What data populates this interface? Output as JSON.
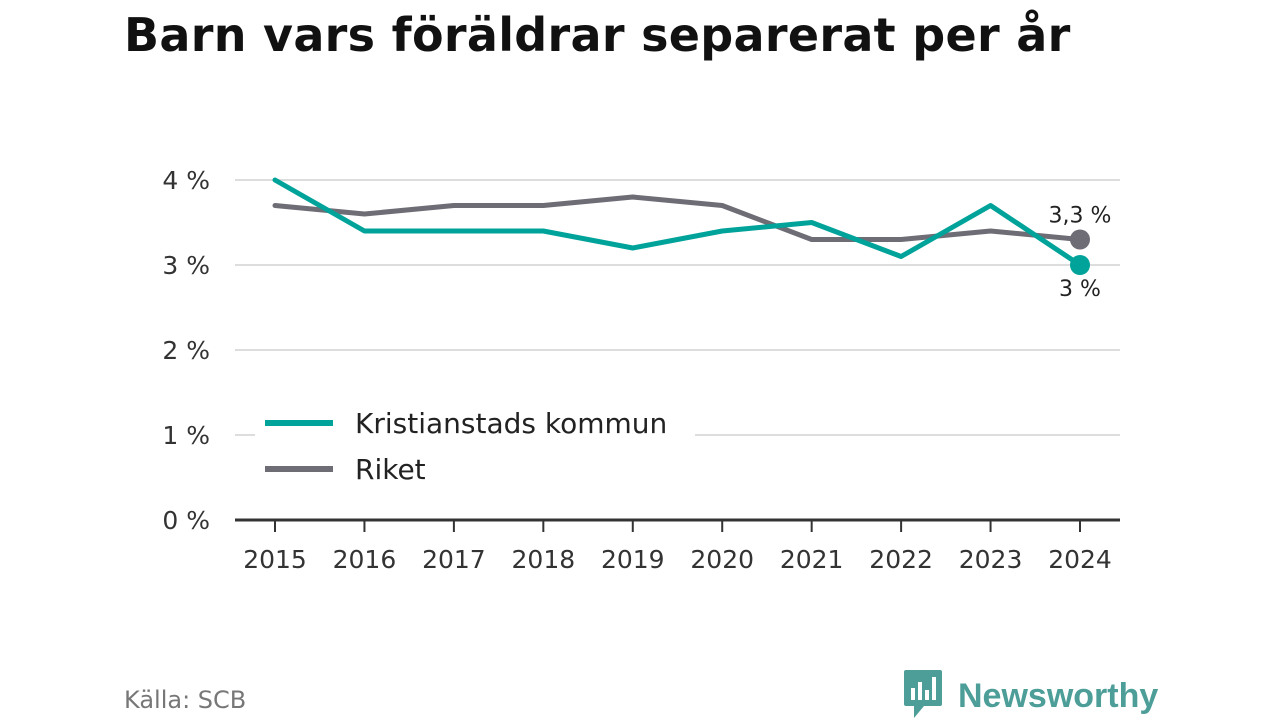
{
  "title": "Barn vars föräldrar separerat per år",
  "source": "Källa: SCB",
  "brand": {
    "name": "Newsworthy",
    "icon": "newsworthy-logo-icon",
    "color": "#4d9e98"
  },
  "chart_data": {
    "type": "line",
    "title": "Barn vars föräldrar separerat per år",
    "x": [
      2015,
      2016,
      2017,
      2018,
      2019,
      2020,
      2021,
      2022,
      2023,
      2024
    ],
    "x_tick_labels": [
      "2015",
      "2016",
      "2017",
      "2018",
      "2019",
      "2020",
      "2021",
      "2022",
      "2023",
      "2024"
    ],
    "y_ticks": [
      0,
      1,
      2,
      3,
      4
    ],
    "y_tick_labels": [
      "0 %",
      "1 %",
      "2 %",
      "3 %",
      "4 %"
    ],
    "ylim": [
      0,
      4
    ],
    "grid": "horizontal",
    "legend_position": "bottom-left",
    "series": [
      {
        "name": "Kristianstads kommun",
        "color": "#00a39a",
        "values": [
          4.0,
          3.4,
          3.4,
          3.4,
          3.2,
          3.4,
          3.5,
          3.1,
          3.7,
          3.0
        ],
        "end_label": "3 %"
      },
      {
        "name": "Riket",
        "color": "#6e6d75",
        "values": [
          3.7,
          3.6,
          3.7,
          3.7,
          3.8,
          3.7,
          3.3,
          3.3,
          3.4,
          3.3
        ],
        "end_label": "3,3 %"
      }
    ]
  }
}
